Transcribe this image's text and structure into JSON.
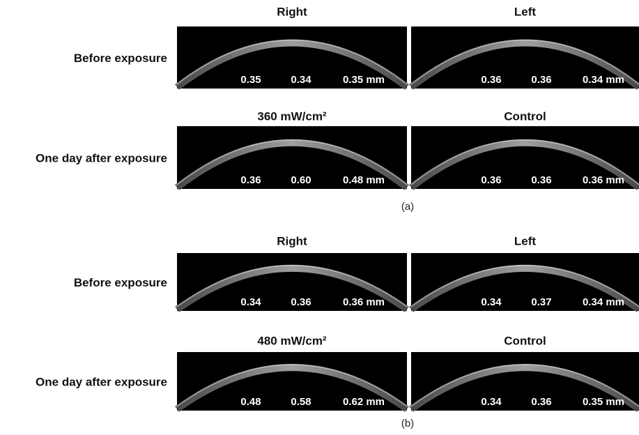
{
  "panels": [
    {
      "label": "(a)",
      "rows": [
        {
          "label": "Before exposure",
          "images": [
            {
              "title": "Right",
              "measurements": [
                "0.35",
                "0.34",
                "0.35 mm"
              ]
            },
            {
              "title": "Left",
              "measurements": [
                "0.36",
                "0.36",
                "0.34 mm"
              ]
            }
          ]
        },
        {
          "label": "One day after exposure",
          "images": [
            {
              "title": "360 mW/cm²",
              "measurements": [
                "0.36",
                "0.60",
                "0.48 mm"
              ]
            },
            {
              "title": "Control",
              "measurements": [
                "0.36",
                "0.36",
                "0.36 mm"
              ]
            }
          ]
        }
      ]
    },
    {
      "label": "(b)",
      "rows": [
        {
          "label": "Before exposure",
          "images": [
            {
              "title": "Right",
              "measurements": [
                "0.34",
                "0.36",
                "0.36 mm"
              ]
            },
            {
              "title": "Left",
              "measurements": [
                "0.34",
                "0.37",
                "0.34 mm"
              ]
            }
          ]
        },
        {
          "label": "One day after exposure",
          "images": [
            {
              "title": "480 mW/cm²",
              "measurements": [
                "0.48",
                "0.58",
                "0.62 mm"
              ]
            },
            {
              "title": "Control",
              "measurements": [
                "0.34",
                "0.36",
                "0.35 mm"
              ]
            }
          ]
        }
      ]
    }
  ]
}
